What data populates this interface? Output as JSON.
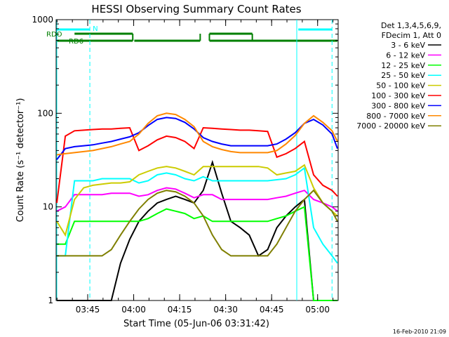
{
  "chart_data": {
    "type": "line",
    "title": "HESSI Observing Summary Count Rates",
    "xlabel": "Start Time (05-Jun-06 03:31:42)",
    "ylabel": "Count Rate (s⁻¹ detector⁻¹)",
    "yscale": "log",
    "ylim": [
      1,
      1000
    ],
    "xlim_minutes": [
      3.0,
      95.0
    ],
    "x_ticks": [
      "03:45",
      "04:00",
      "04:15",
      "04:30",
      "04:45",
      "05:00"
    ],
    "y_ticks": [
      "1",
      "10",
      "100",
      "1000"
    ],
    "x_tick_minutes": [
      13.3,
      28.3,
      43.3,
      58.3,
      73.3,
      88.3
    ],
    "legend_header": [
      "Det 1,3,4,5,6,9,",
      "FDecim 1, Att 0"
    ],
    "legend_position": "outside-right",
    "footer_date": "16-Feb-2010 21:09",
    "flag_labels": [
      {
        "label": "RDO",
        "color": "#007f00"
      },
      {
        "label": "RD6",
        "color": "#007f00"
      },
      {
        "label": "N",
        "color": "#00ffff"
      }
    ],
    "flags": {
      "rdo_segments": [
        [
          9.0,
          28.0
        ],
        [
          53.0,
          67.0
        ]
      ],
      "rd6_segments": [
        [
          3.0,
          28.0
        ],
        [
          28.5,
          50.0
        ],
        [
          53.0,
          95.0
        ]
      ],
      "n_segments": [
        [
          3.0,
          14.0
        ],
        [
          82.0,
          93.0
        ]
      ],
      "n_vlines_solid": [
        3.0,
        81.5
      ],
      "n_vlines_dashed": [
        14.0,
        93.0
      ],
      "rd_vlines": [
        28.0,
        50.0,
        53.0,
        67.0
      ]
    },
    "series": [
      {
        "name": "3 - 6 keV",
        "color": "#000000",
        "x": [
          3,
          6,
          9,
          12,
          15,
          18,
          21,
          24,
          27,
          30,
          33,
          36,
          39,
          42,
          45,
          48,
          51,
          54,
          57,
          60,
          63,
          66,
          69,
          72,
          75,
          78,
          81,
          84,
          87,
          90,
          93,
          95
        ],
        "values": [
          1.0,
          1.0,
          1.0,
          1.0,
          1.0,
          1.0,
          1.0,
          2.5,
          4.5,
          7.0,
          9.0,
          11.0,
          12.0,
          13.0,
          12.0,
          11.0,
          15.0,
          30.0,
          14.0,
          7.0,
          6.0,
          5.0,
          3.0,
          3.5,
          6.0,
          8.0,
          10.0,
          12.0,
          1.0,
          1.0,
          1.0,
          1.0
        ]
      },
      {
        "name": "6 - 12 keV",
        "color": "#ff00ff",
        "x": [
          3,
          6,
          9,
          12,
          15,
          18,
          21,
          24,
          27,
          30,
          33,
          36,
          39,
          42,
          45,
          48,
          51,
          54,
          57,
          60,
          63,
          66,
          69,
          72,
          75,
          78,
          81,
          84,
          87,
          90,
          93,
          95
        ],
        "values": [
          9.0,
          10.0,
          13.5,
          13.5,
          13.5,
          13.5,
          14.0,
          14.0,
          14.0,
          13.0,
          13.5,
          15.0,
          16.0,
          15.5,
          14.0,
          12.5,
          13.5,
          13.5,
          12.0,
          12.0,
          12.0,
          12.0,
          12.0,
          12.0,
          12.5,
          13.0,
          14.0,
          15.0,
          12.0,
          11.0,
          10.0,
          9.0
        ]
      },
      {
        "name": "12 - 25 keV",
        "color": "#00ff00",
        "x": [
          3,
          6,
          9,
          12,
          15,
          18,
          21,
          24,
          27,
          30,
          33,
          36,
          39,
          42,
          45,
          48,
          51,
          54,
          57,
          60,
          63,
          66,
          69,
          72,
          75,
          78,
          81,
          84,
          87,
          90,
          93,
          95
        ],
        "values": [
          4.0,
          4.0,
          7.0,
          7.0,
          7.0,
          7.0,
          7.0,
          7.0,
          7.0,
          7.0,
          7.5,
          8.5,
          9.5,
          9.0,
          8.5,
          7.5,
          8.0,
          7.0,
          7.0,
          7.0,
          7.0,
          7.0,
          7.0,
          7.0,
          7.5,
          8.0,
          9.0,
          10.0,
          1.0,
          1.0,
          1.0,
          1.0
        ]
      },
      {
        "name": "25 - 50 keV",
        "color": "#00ffff",
        "x": [
          3,
          6,
          9,
          12,
          15,
          18,
          21,
          24,
          27,
          30,
          33,
          36,
          39,
          42,
          45,
          48,
          51,
          54,
          57,
          60,
          63,
          66,
          69,
          72,
          75,
          78,
          81,
          84,
          87,
          90,
          93,
          95
        ],
        "values": [
          3.0,
          3.0,
          19.0,
          19.0,
          19.0,
          20.0,
          20.0,
          20.0,
          20.0,
          18.0,
          19.0,
          22.0,
          23.0,
          22.0,
          20.0,
          19.0,
          21.0,
          19.0,
          19.0,
          19.0,
          19.0,
          19.0,
          19.0,
          19.0,
          19.5,
          20.0,
          22.0,
          26.0,
          6.0,
          4.0,
          3.0,
          2.5
        ]
      },
      {
        "name": "50 - 100 keV",
        "color": "#cccc00",
        "x": [
          3,
          6,
          9,
          12,
          15,
          18,
          21,
          24,
          27,
          30,
          33,
          36,
          39,
          42,
          45,
          48,
          51,
          54,
          57,
          60,
          63,
          66,
          69,
          72,
          75,
          78,
          81,
          84,
          87,
          90,
          93,
          95
        ],
        "values": [
          7.0,
          5.0,
          12.0,
          16.0,
          17.0,
          17.5,
          18.0,
          18.0,
          18.5,
          22.0,
          24.0,
          26.0,
          27.0,
          26.0,
          24.0,
          22.0,
          27.0,
          27.0,
          27.0,
          27.0,
          27.0,
          27.0,
          27.0,
          26.0,
          22.0,
          23.0,
          24.0,
          28.0,
          16.0,
          11.0,
          9.0,
          8.0
        ]
      },
      {
        "name": "100 - 300 keV",
        "color": "#ff0000",
        "x": [
          3,
          6,
          9,
          12,
          15,
          18,
          21,
          24,
          27,
          30,
          33,
          36,
          39,
          42,
          45,
          48,
          51,
          54,
          57,
          60,
          63,
          66,
          69,
          72,
          75,
          78,
          81,
          84,
          87,
          90,
          93,
          95
        ],
        "values": [
          11.0,
          57.0,
          65.0,
          66.0,
          67.0,
          68.0,
          68.0,
          69.0,
          70.0,
          40.0,
          45.0,
          52.0,
          57.0,
          55.0,
          50.0,
          42.0,
          70.0,
          69.0,
          68.0,
          67.0,
          66.0,
          66.0,
          65.0,
          64.0,
          34.0,
          37.0,
          42.0,
          50.0,
          22.0,
          17.0,
          15.0,
          13.0
        ]
      },
      {
        "name": "300 - 800 keV",
        "color": "#0000ff",
        "x": [
          3,
          6,
          9,
          12,
          15,
          18,
          21,
          24,
          27,
          30,
          33,
          36,
          39,
          42,
          45,
          48,
          51,
          54,
          57,
          60,
          63,
          66,
          69,
          72,
          75,
          78,
          81,
          84,
          87,
          90,
          93,
          95
        ],
        "values": [
          32.0,
          42.0,
          44.0,
          45.0,
          46.0,
          48.0,
          50.0,
          53.0,
          56.0,
          62.0,
          74.0,
          86.0,
          90.0,
          88.0,
          80.0,
          68.0,
          55.0,
          50.0,
          47.0,
          45.0,
          45.0,
          45.0,
          45.0,
          45.0,
          47.0,
          53.0,
          62.0,
          78.0,
          86.0,
          75.0,
          60.0,
          42.0
        ]
      },
      {
        "name": "800 - 7000 keV",
        "color": "#ff8800",
        "x": [
          3,
          6,
          9,
          12,
          15,
          18,
          21,
          24,
          27,
          30,
          33,
          36,
          39,
          42,
          45,
          48,
          51,
          54,
          57,
          60,
          63,
          66,
          69,
          72,
          75,
          78,
          81,
          84,
          87,
          90,
          93,
          95
        ],
        "values": [
          36.0,
          37.0,
          38.0,
          39.0,
          40.0,
          42.0,
          44.0,
          47.0,
          50.0,
          60.0,
          78.0,
          94.0,
          100.0,
          97.0,
          86.0,
          72.0,
          50.0,
          44.0,
          41.0,
          39.0,
          38.0,
          38.0,
          38.0,
          38.0,
          40.0,
          47.0,
          58.0,
          78.0,
          94.0,
          80.0,
          65.0,
          50.0
        ]
      },
      {
        "name": "7000 - 20000 keV",
        "color": "#7f7f00",
        "x": [
          3,
          6,
          9,
          12,
          15,
          18,
          21,
          24,
          27,
          30,
          33,
          36,
          39,
          42,
          45,
          48,
          51,
          54,
          57,
          60,
          63,
          66,
          69,
          72,
          75,
          78,
          81,
          84,
          87,
          90,
          93,
          95
        ],
        "values": [
          3.0,
          3.0,
          3.0,
          3.0,
          3.0,
          3.0,
          3.5,
          5.0,
          7.0,
          9.5,
          12.0,
          14.0,
          15.0,
          14.5,
          13.0,
          11.0,
          8.0,
          5.0,
          3.5,
          3.0,
          3.0,
          3.0,
          3.0,
          3.0,
          4.0,
          6.0,
          9.0,
          12.0,
          15.0,
          11.0,
          9.0,
          7.0
        ]
      }
    ]
  }
}
